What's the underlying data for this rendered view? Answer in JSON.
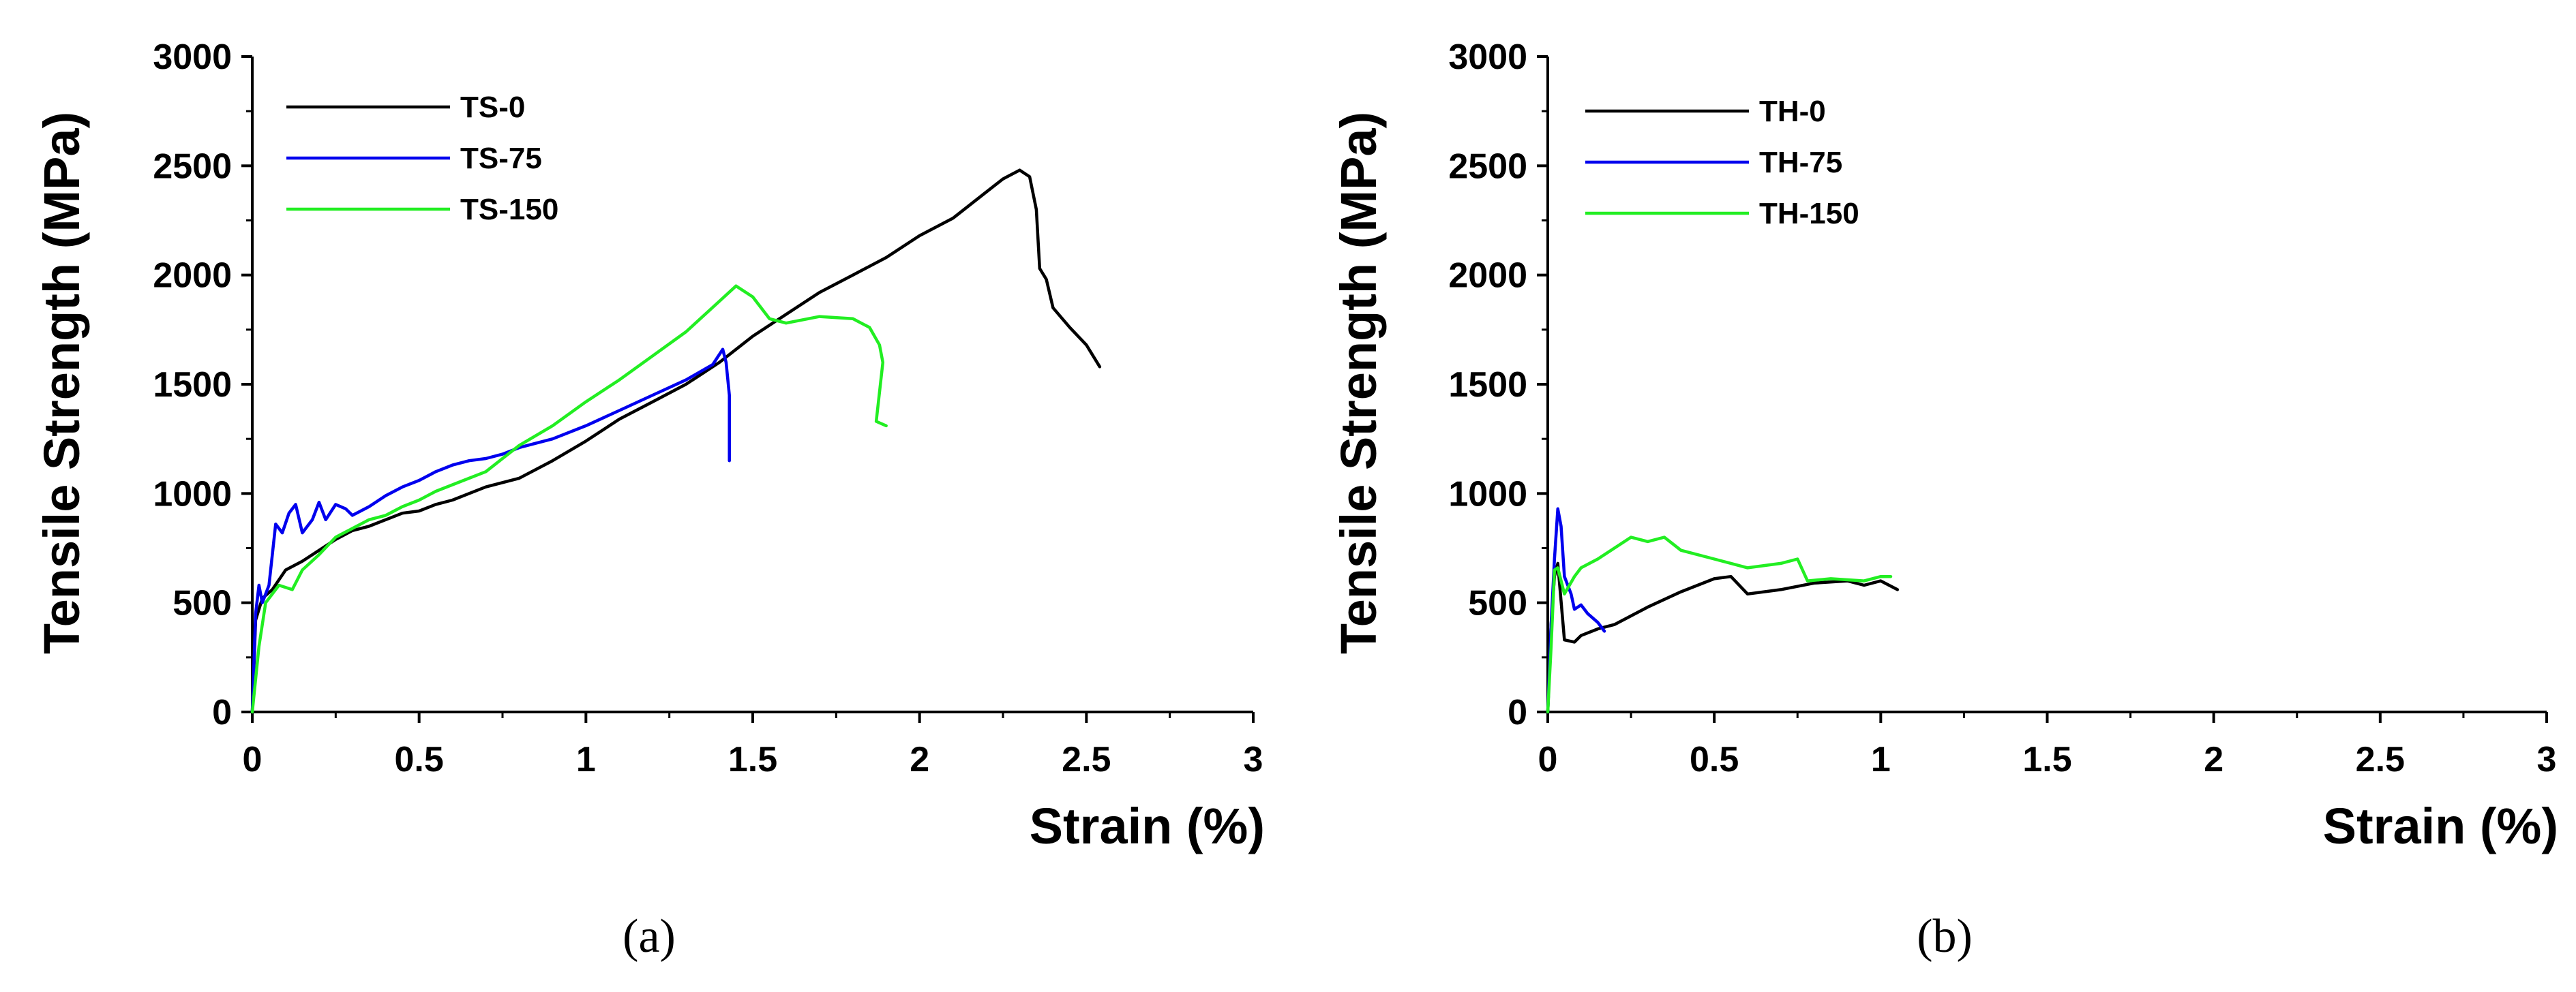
{
  "chart_data": [
    {
      "type": "line",
      "panel_label": "(a)",
      "xlabel": "Strain (%)",
      "ylabel": "Tensile Strength (MPa)",
      "xlim": [
        0,
        3
      ],
      "ylim": [
        0,
        3000
      ],
      "xticks": [
        "0",
        "0.5",
        "1",
        "1.5",
        "2",
        "2.5",
        "3"
      ],
      "yticks": [
        "0",
        "500",
        "1000",
        "1500",
        "2000",
        "2500",
        "3000"
      ],
      "legend_position": "top-left",
      "series": [
        {
          "name": "TS-0",
          "color": "#000000",
          "points": [
            [
              0,
              0
            ],
            [
              0.01,
              420
            ],
            [
              0.03,
              520
            ],
            [
              0.06,
              560
            ],
            [
              0.1,
              650
            ],
            [
              0.15,
              690
            ],
            [
              0.2,
              740
            ],
            [
              0.25,
              790
            ],
            [
              0.3,
              830
            ],
            [
              0.35,
              850
            ],
            [
              0.4,
              880
            ],
            [
              0.45,
              910
            ],
            [
              0.5,
              920
            ],
            [
              0.55,
              950
            ],
            [
              0.6,
              970
            ],
            [
              0.65,
              1000
            ],
            [
              0.7,
              1030
            ],
            [
              0.8,
              1070
            ],
            [
              0.9,
              1150
            ],
            [
              1.0,
              1240
            ],
            [
              1.1,
              1340
            ],
            [
              1.2,
              1420
            ],
            [
              1.3,
              1500
            ],
            [
              1.4,
              1600
            ],
            [
              1.5,
              1720
            ],
            [
              1.6,
              1820
            ],
            [
              1.7,
              1920
            ],
            [
              1.8,
              2000
            ],
            [
              1.9,
              2080
            ],
            [
              2.0,
              2180
            ],
            [
              2.1,
              2260
            ],
            [
              2.2,
              2380
            ],
            [
              2.25,
              2440
            ],
            [
              2.3,
              2480
            ],
            [
              2.33,
              2450
            ],
            [
              2.35,
              2300
            ],
            [
              2.36,
              2030
            ],
            [
              2.38,
              1980
            ],
            [
              2.4,
              1850
            ],
            [
              2.45,
              1760
            ],
            [
              2.5,
              1680
            ],
            [
              2.54,
              1580
            ]
          ]
        },
        {
          "name": "TS-75",
          "color": "#0000ee",
          "points": [
            [
              0,
              0
            ],
            [
              0.01,
              450
            ],
            [
              0.02,
              580
            ],
            [
              0.03,
              500
            ],
            [
              0.05,
              580
            ],
            [
              0.07,
              860
            ],
            [
              0.09,
              820
            ],
            [
              0.11,
              910
            ],
            [
              0.13,
              950
            ],
            [
              0.15,
              820
            ],
            [
              0.18,
              880
            ],
            [
              0.2,
              960
            ],
            [
              0.22,
              880
            ],
            [
              0.25,
              950
            ],
            [
              0.28,
              930
            ],
            [
              0.3,
              900
            ],
            [
              0.35,
              940
            ],
            [
              0.4,
              990
            ],
            [
              0.45,
              1030
            ],
            [
              0.5,
              1060
            ],
            [
              0.55,
              1100
            ],
            [
              0.6,
              1130
            ],
            [
              0.65,
              1150
            ],
            [
              0.7,
              1160
            ],
            [
              0.75,
              1180
            ],
            [
              0.8,
              1210
            ],
            [
              0.85,
              1230
            ],
            [
              0.9,
              1250
            ],
            [
              1.0,
              1310
            ],
            [
              1.1,
              1380
            ],
            [
              1.2,
              1450
            ],
            [
              1.3,
              1520
            ],
            [
              1.38,
              1590
            ],
            [
              1.41,
              1660
            ],
            [
              1.42,
              1600
            ],
            [
              1.43,
              1450
            ],
            [
              1.43,
              1150
            ]
          ]
        },
        {
          "name": "TS-150",
          "color": "#22ee22",
          "points": [
            [
              0,
              0
            ],
            [
              0.02,
              300
            ],
            [
              0.04,
              500
            ],
            [
              0.08,
              580
            ],
            [
              0.12,
              560
            ],
            [
              0.15,
              650
            ],
            [
              0.2,
              720
            ],
            [
              0.25,
              800
            ],
            [
              0.3,
              840
            ],
            [
              0.35,
              880
            ],
            [
              0.4,
              900
            ],
            [
              0.45,
              940
            ],
            [
              0.5,
              970
            ],
            [
              0.55,
              1010
            ],
            [
              0.6,
              1040
            ],
            [
              0.65,
              1070
            ],
            [
              0.7,
              1100
            ],
            [
              0.75,
              1160
            ],
            [
              0.8,
              1220
            ],
            [
              0.9,
              1310
            ],
            [
              1.0,
              1420
            ],
            [
              1.1,
              1520
            ],
            [
              1.2,
              1630
            ],
            [
              1.3,
              1740
            ],
            [
              1.4,
              1880
            ],
            [
              1.45,
              1950
            ],
            [
              1.5,
              1900
            ],
            [
              1.55,
              1800
            ],
            [
              1.6,
              1780
            ],
            [
              1.7,
              1810
            ],
            [
              1.8,
              1800
            ],
            [
              1.85,
              1760
            ],
            [
              1.88,
              1680
            ],
            [
              1.89,
              1600
            ],
            [
              1.87,
              1330
            ],
            [
              1.9,
              1310
            ]
          ]
        }
      ]
    },
    {
      "type": "line",
      "panel_label": "(b)",
      "xlabel": "Strain (%)",
      "ylabel": "Tensile Strength (MPa)",
      "xlim": [
        0,
        3
      ],
      "ylim": [
        0,
        3000
      ],
      "xticks": [
        "0",
        "0.5",
        "1",
        "1.5",
        "2",
        "2.5",
        "3"
      ],
      "yticks": [
        "0",
        "500",
        "1000",
        "1500",
        "2000",
        "2500",
        "3000"
      ],
      "legend_position": "top-left",
      "series": [
        {
          "name": "TH-0",
          "color": "#000000",
          "points": [
            [
              0,
              0
            ],
            [
              0.01,
              400
            ],
            [
              0.02,
              620
            ],
            [
              0.03,
              680
            ],
            [
              0.05,
              330
            ],
            [
              0.08,
              320
            ],
            [
              0.1,
              350
            ],
            [
              0.15,
              380
            ],
            [
              0.2,
              400
            ],
            [
              0.3,
              480
            ],
            [
              0.4,
              550
            ],
            [
              0.5,
              610
            ],
            [
              0.55,
              620
            ],
            [
              0.6,
              540
            ],
            [
              0.7,
              560
            ],
            [
              0.8,
              590
            ],
            [
              0.9,
              600
            ],
            [
              0.95,
              580
            ],
            [
              1.0,
              600
            ],
            [
              1.05,
              560
            ]
          ]
        },
        {
          "name": "TH-75",
          "color": "#0000ee",
          "points": [
            [
              0,
              0
            ],
            [
              0.01,
              400
            ],
            [
              0.02,
              700
            ],
            [
              0.03,
              930
            ],
            [
              0.04,
              850
            ],
            [
              0.05,
              620
            ],
            [
              0.07,
              540
            ],
            [
              0.08,
              470
            ],
            [
              0.1,
              490
            ],
            [
              0.12,
              450
            ],
            [
              0.15,
              410
            ],
            [
              0.17,
              370
            ]
          ]
        },
        {
          "name": "TH-150",
          "color": "#22ee22",
          "points": [
            [
              0,
              0
            ],
            [
              0.01,
              300
            ],
            [
              0.02,
              650
            ],
            [
              0.03,
              660
            ],
            [
              0.05,
              540
            ],
            [
              0.08,
              620
            ],
            [
              0.1,
              660
            ],
            [
              0.15,
              700
            ],
            [
              0.2,
              750
            ],
            [
              0.25,
              800
            ],
            [
              0.3,
              780
            ],
            [
              0.35,
              800
            ],
            [
              0.4,
              740
            ],
            [
              0.5,
              700
            ],
            [
              0.6,
              660
            ],
            [
              0.7,
              680
            ],
            [
              0.75,
              700
            ],
            [
              0.78,
              600
            ],
            [
              0.85,
              610
            ],
            [
              0.95,
              600
            ],
            [
              1.0,
              620
            ],
            [
              1.03,
              620
            ]
          ]
        }
      ]
    }
  ]
}
